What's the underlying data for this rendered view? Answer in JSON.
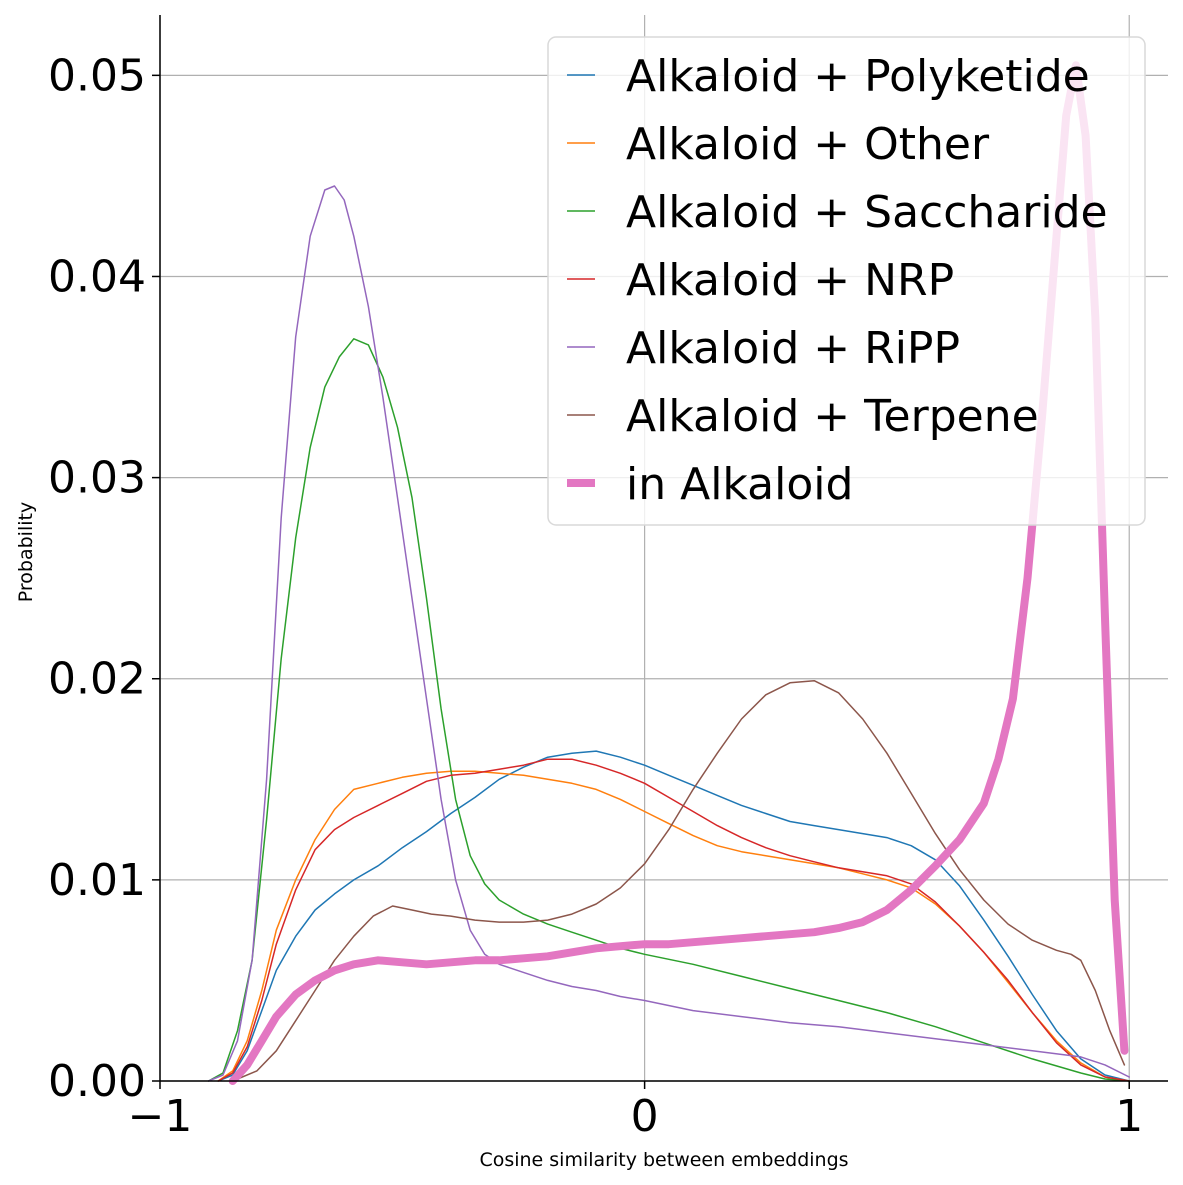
{
  "chart_data": {
    "type": "line",
    "title": "",
    "xlabel": "Cosine similarity between embeddings",
    "ylabel": "Probability",
    "xlim": [
      -1,
      1.08
    ],
    "ylim": [
      0,
      0.053
    ],
    "grid": true,
    "legend_position": "top-right",
    "x_ticks": [
      {
        "value": -1,
        "label": "−1"
      },
      {
        "value": 0,
        "label": "0"
      },
      {
        "value": 1,
        "label": "1"
      }
    ],
    "y_ticks": [
      {
        "value": 0,
        "label": "0.00"
      },
      {
        "value": 0.01,
        "label": "0.01"
      },
      {
        "value": 0.02,
        "label": "0.02"
      },
      {
        "value": 0.03,
        "label": "0.03"
      },
      {
        "value": 0.04,
        "label": "0.04"
      },
      {
        "value": 0.05,
        "label": "0.05"
      }
    ],
    "series": [
      {
        "name": "Alkaloid + Polyketide",
        "color": "#1f77b4",
        "width": 1.5,
        "points": [
          [
            -0.88,
            0
          ],
          [
            -0.85,
            0.0003
          ],
          [
            -0.82,
            0.0015
          ],
          [
            -0.79,
            0.0035
          ],
          [
            -0.76,
            0.0055
          ],
          [
            -0.72,
            0.0072
          ],
          [
            -0.68,
            0.0085
          ],
          [
            -0.64,
            0.0093
          ],
          [
            -0.6,
            0.01
          ],
          [
            -0.55,
            0.0107
          ],
          [
            -0.5,
            0.0116
          ],
          [
            -0.45,
            0.0124
          ],
          [
            -0.4,
            0.0133
          ],
          [
            -0.35,
            0.0141
          ],
          [
            -0.3,
            0.015
          ],
          [
            -0.25,
            0.0156
          ],
          [
            -0.2,
            0.0161
          ],
          [
            -0.15,
            0.0163
          ],
          [
            -0.1,
            0.0164
          ],
          [
            -0.05,
            0.0161
          ],
          [
            0,
            0.0157
          ],
          [
            0.05,
            0.0152
          ],
          [
            0.1,
            0.0147
          ],
          [
            0.15,
            0.0142
          ],
          [
            0.2,
            0.0137
          ],
          [
            0.25,
            0.0133
          ],
          [
            0.3,
            0.0129
          ],
          [
            0.35,
            0.0127
          ],
          [
            0.4,
            0.0125
          ],
          [
            0.45,
            0.0123
          ],
          [
            0.5,
            0.0121
          ],
          [
            0.55,
            0.0117
          ],
          [
            0.6,
            0.011
          ],
          [
            0.65,
            0.0097
          ],
          [
            0.7,
            0.008
          ],
          [
            0.75,
            0.0062
          ],
          [
            0.8,
            0.0043
          ],
          [
            0.85,
            0.0025
          ],
          [
            0.9,
            0.0011
          ],
          [
            0.95,
            0.0003
          ],
          [
            1,
            0
          ]
        ]
      },
      {
        "name": "Alkaloid + Other",
        "color": "#ff7f0e",
        "width": 1.5,
        "points": [
          [
            -0.88,
            0
          ],
          [
            -0.85,
            0.0005
          ],
          [
            -0.82,
            0.002
          ],
          [
            -0.79,
            0.0045
          ],
          [
            -0.76,
            0.0075
          ],
          [
            -0.72,
            0.01
          ],
          [
            -0.68,
            0.012
          ],
          [
            -0.64,
            0.0135
          ],
          [
            -0.6,
            0.0145
          ],
          [
            -0.55,
            0.0148
          ],
          [
            -0.5,
            0.0151
          ],
          [
            -0.45,
            0.0153
          ],
          [
            -0.4,
            0.0154
          ],
          [
            -0.35,
            0.0154
          ],
          [
            -0.3,
            0.0153
          ],
          [
            -0.25,
            0.0152
          ],
          [
            -0.2,
            0.015
          ],
          [
            -0.15,
            0.0148
          ],
          [
            -0.1,
            0.0145
          ],
          [
            -0.05,
            0.014
          ],
          [
            0,
            0.0134
          ],
          [
            0.05,
            0.0128
          ],
          [
            0.1,
            0.0122
          ],
          [
            0.15,
            0.0117
          ],
          [
            0.2,
            0.0114
          ],
          [
            0.25,
            0.0112
          ],
          [
            0.3,
            0.011
          ],
          [
            0.35,
            0.0108
          ],
          [
            0.4,
            0.0106
          ],
          [
            0.45,
            0.0103
          ],
          [
            0.5,
            0.01
          ],
          [
            0.55,
            0.0096
          ],
          [
            0.6,
            0.0088
          ],
          [
            0.65,
            0.0077
          ],
          [
            0.7,
            0.0064
          ],
          [
            0.75,
            0.0049
          ],
          [
            0.8,
            0.0034
          ],
          [
            0.85,
            0.002
          ],
          [
            0.9,
            0.0009
          ],
          [
            0.95,
            0.0002
          ],
          [
            1,
            0
          ]
        ]
      },
      {
        "name": "Alkaloid + Saccharide",
        "color": "#2ca02c",
        "width": 1.5,
        "points": [
          [
            -0.9,
            0
          ],
          [
            -0.87,
            0.0004
          ],
          [
            -0.84,
            0.0025
          ],
          [
            -0.81,
            0.006
          ],
          [
            -0.78,
            0.013
          ],
          [
            -0.75,
            0.021
          ],
          [
            -0.72,
            0.027
          ],
          [
            -0.69,
            0.0315
          ],
          [
            -0.66,
            0.0345
          ],
          [
            -0.63,
            0.036
          ],
          [
            -0.6,
            0.0369
          ],
          [
            -0.57,
            0.0366
          ],
          [
            -0.54,
            0.035
          ],
          [
            -0.51,
            0.0325
          ],
          [
            -0.48,
            0.029
          ],
          [
            -0.45,
            0.024
          ],
          [
            -0.42,
            0.0185
          ],
          [
            -0.39,
            0.014
          ],
          [
            -0.36,
            0.0112
          ],
          [
            -0.33,
            0.0098
          ],
          [
            -0.3,
            0.009
          ],
          [
            -0.25,
            0.0083
          ],
          [
            -0.2,
            0.0078
          ],
          [
            -0.15,
            0.0074
          ],
          [
            -0.1,
            0.007
          ],
          [
            -0.05,
            0.0066
          ],
          [
            0,
            0.0063
          ],
          [
            0.1,
            0.0058
          ],
          [
            0.2,
            0.0052
          ],
          [
            0.3,
            0.0046
          ],
          [
            0.4,
            0.004
          ],
          [
            0.5,
            0.0034
          ],
          [
            0.6,
            0.0027
          ],
          [
            0.7,
            0.0019
          ],
          [
            0.8,
            0.0011
          ],
          [
            0.9,
            0.0004
          ],
          [
            0.95,
            0.0001
          ],
          [
            1,
            0
          ]
        ]
      },
      {
        "name": "Alkaloid + NRP",
        "color": "#d62728",
        "width": 1.5,
        "points": [
          [
            -0.88,
            0
          ],
          [
            -0.85,
            0.0004
          ],
          [
            -0.82,
            0.0017
          ],
          [
            -0.79,
            0.004
          ],
          [
            -0.76,
            0.0068
          ],
          [
            -0.72,
            0.0095
          ],
          [
            -0.68,
            0.0115
          ],
          [
            -0.64,
            0.0125
          ],
          [
            -0.6,
            0.0131
          ],
          [
            -0.55,
            0.0137
          ],
          [
            -0.5,
            0.0143
          ],
          [
            -0.45,
            0.0149
          ],
          [
            -0.4,
            0.0152
          ],
          [
            -0.35,
            0.0153
          ],
          [
            -0.3,
            0.0155
          ],
          [
            -0.25,
            0.0157
          ],
          [
            -0.2,
            0.016
          ],
          [
            -0.15,
            0.016
          ],
          [
            -0.1,
            0.0157
          ],
          [
            -0.05,
            0.0153
          ],
          [
            0,
            0.0148
          ],
          [
            0.05,
            0.0141
          ],
          [
            0.1,
            0.0134
          ],
          [
            0.15,
            0.0127
          ],
          [
            0.2,
            0.0121
          ],
          [
            0.25,
            0.0116
          ],
          [
            0.3,
            0.0112
          ],
          [
            0.35,
            0.0109
          ],
          [
            0.4,
            0.0106
          ],
          [
            0.45,
            0.0104
          ],
          [
            0.5,
            0.0102
          ],
          [
            0.55,
            0.0098
          ],
          [
            0.6,
            0.0089
          ],
          [
            0.65,
            0.0077
          ],
          [
            0.7,
            0.0064
          ],
          [
            0.75,
            0.005
          ],
          [
            0.8,
            0.0034
          ],
          [
            0.85,
            0.0019
          ],
          [
            0.9,
            0.0008
          ],
          [
            0.95,
            0.0002
          ],
          [
            1,
            0
          ]
        ]
      },
      {
        "name": "Alkaloid + RiPP",
        "color": "#9467bd",
        "width": 1.5,
        "points": [
          [
            -0.9,
            0
          ],
          [
            -0.87,
            0.0003
          ],
          [
            -0.84,
            0.002
          ],
          [
            -0.81,
            0.006
          ],
          [
            -0.78,
            0.015
          ],
          [
            -0.75,
            0.028
          ],
          [
            -0.72,
            0.037
          ],
          [
            -0.69,
            0.042
          ],
          [
            -0.66,
            0.0443
          ],
          [
            -0.64,
            0.0445
          ],
          [
            -0.62,
            0.0438
          ],
          [
            -0.6,
            0.042
          ],
          [
            -0.57,
            0.0385
          ],
          [
            -0.54,
            0.034
          ],
          [
            -0.51,
            0.029
          ],
          [
            -0.48,
            0.024
          ],
          [
            -0.45,
            0.019
          ],
          [
            -0.42,
            0.014
          ],
          [
            -0.39,
            0.01
          ],
          [
            -0.36,
            0.0075
          ],
          [
            -0.33,
            0.0063
          ],
          [
            -0.3,
            0.0058
          ],
          [
            -0.25,
            0.0054
          ],
          [
            -0.2,
            0.005
          ],
          [
            -0.15,
            0.0047
          ],
          [
            -0.1,
            0.0045
          ],
          [
            -0.05,
            0.0042
          ],
          [
            0,
            0.004
          ],
          [
            0.1,
            0.0035
          ],
          [
            0.2,
            0.0032
          ],
          [
            0.3,
            0.0029
          ],
          [
            0.4,
            0.0027
          ],
          [
            0.5,
            0.0024
          ],
          [
            0.6,
            0.0021
          ],
          [
            0.7,
            0.0018
          ],
          [
            0.8,
            0.0015
          ],
          [
            0.9,
            0.0012
          ],
          [
            0.95,
            0.0008
          ],
          [
            1,
            0.0002
          ]
        ]
      },
      {
        "name": "Alkaloid + Terpene",
        "color": "#8c564b",
        "width": 1.5,
        "points": [
          [
            -0.85,
            0
          ],
          [
            -0.8,
            0.0005
          ],
          [
            -0.76,
            0.0015
          ],
          [
            -0.72,
            0.003
          ],
          [
            -0.68,
            0.0045
          ],
          [
            -0.64,
            0.006
          ],
          [
            -0.6,
            0.0072
          ],
          [
            -0.56,
            0.0082
          ],
          [
            -0.52,
            0.0087
          ],
          [
            -0.48,
            0.0085
          ],
          [
            -0.44,
            0.0083
          ],
          [
            -0.4,
            0.0082
          ],
          [
            -0.35,
            0.008
          ],
          [
            -0.3,
            0.0079
          ],
          [
            -0.25,
            0.0079
          ],
          [
            -0.2,
            0.008
          ],
          [
            -0.15,
            0.0083
          ],
          [
            -0.1,
            0.0088
          ],
          [
            -0.05,
            0.0096
          ],
          [
            0,
            0.0108
          ],
          [
            0.05,
            0.0125
          ],
          [
            0.1,
            0.0145
          ],
          [
            0.15,
            0.0163
          ],
          [
            0.2,
            0.018
          ],
          [
            0.25,
            0.0192
          ],
          [
            0.3,
            0.0198
          ],
          [
            0.35,
            0.0199
          ],
          [
            0.4,
            0.0193
          ],
          [
            0.45,
            0.018
          ],
          [
            0.5,
            0.0163
          ],
          [
            0.55,
            0.0143
          ],
          [
            0.6,
            0.0123
          ],
          [
            0.65,
            0.0105
          ],
          [
            0.7,
            0.009
          ],
          [
            0.75,
            0.0078
          ],
          [
            0.8,
            0.007
          ],
          [
            0.85,
            0.0065
          ],
          [
            0.88,
            0.0063
          ],
          [
            0.9,
            0.006
          ],
          [
            0.93,
            0.0045
          ],
          [
            0.96,
            0.0025
          ],
          [
            0.99,
            0.0008
          ]
        ]
      },
      {
        "name": "in Alkaloid",
        "color": "#e377c2",
        "width": 8,
        "points": [
          [
            -0.85,
            0
          ],
          [
            -0.82,
            0.0008
          ],
          [
            -0.79,
            0.002
          ],
          [
            -0.76,
            0.0032
          ],
          [
            -0.72,
            0.0043
          ],
          [
            -0.68,
            0.005
          ],
          [
            -0.64,
            0.0055
          ],
          [
            -0.6,
            0.0058
          ],
          [
            -0.55,
            0.006
          ],
          [
            -0.5,
            0.0059
          ],
          [
            -0.45,
            0.0058
          ],
          [
            -0.4,
            0.0059
          ],
          [
            -0.35,
            0.006
          ],
          [
            -0.3,
            0.006
          ],
          [
            -0.25,
            0.0061
          ],
          [
            -0.2,
            0.0062
          ],
          [
            -0.15,
            0.0064
          ],
          [
            -0.1,
            0.0066
          ],
          [
            -0.05,
            0.0067
          ],
          [
            0,
            0.0068
          ],
          [
            0.05,
            0.0068
          ],
          [
            0.1,
            0.0069
          ],
          [
            0.15,
            0.007
          ],
          [
            0.2,
            0.0071
          ],
          [
            0.25,
            0.0072
          ],
          [
            0.3,
            0.0073
          ],
          [
            0.35,
            0.0074
          ],
          [
            0.4,
            0.0076
          ],
          [
            0.45,
            0.0079
          ],
          [
            0.5,
            0.0085
          ],
          [
            0.55,
            0.0095
          ],
          [
            0.6,
            0.0107
          ],
          [
            0.65,
            0.012
          ],
          [
            0.7,
            0.0138
          ],
          [
            0.73,
            0.016
          ],
          [
            0.76,
            0.019
          ],
          [
            0.79,
            0.025
          ],
          [
            0.82,
            0.033
          ],
          [
            0.85,
            0.042
          ],
          [
            0.87,
            0.048
          ],
          [
            0.89,
            0.0505
          ],
          [
            0.91,
            0.047
          ],
          [
            0.93,
            0.038
          ],
          [
            0.95,
            0.023
          ],
          [
            0.97,
            0.009
          ],
          [
            0.99,
            0.0015
          ]
        ]
      }
    ]
  }
}
